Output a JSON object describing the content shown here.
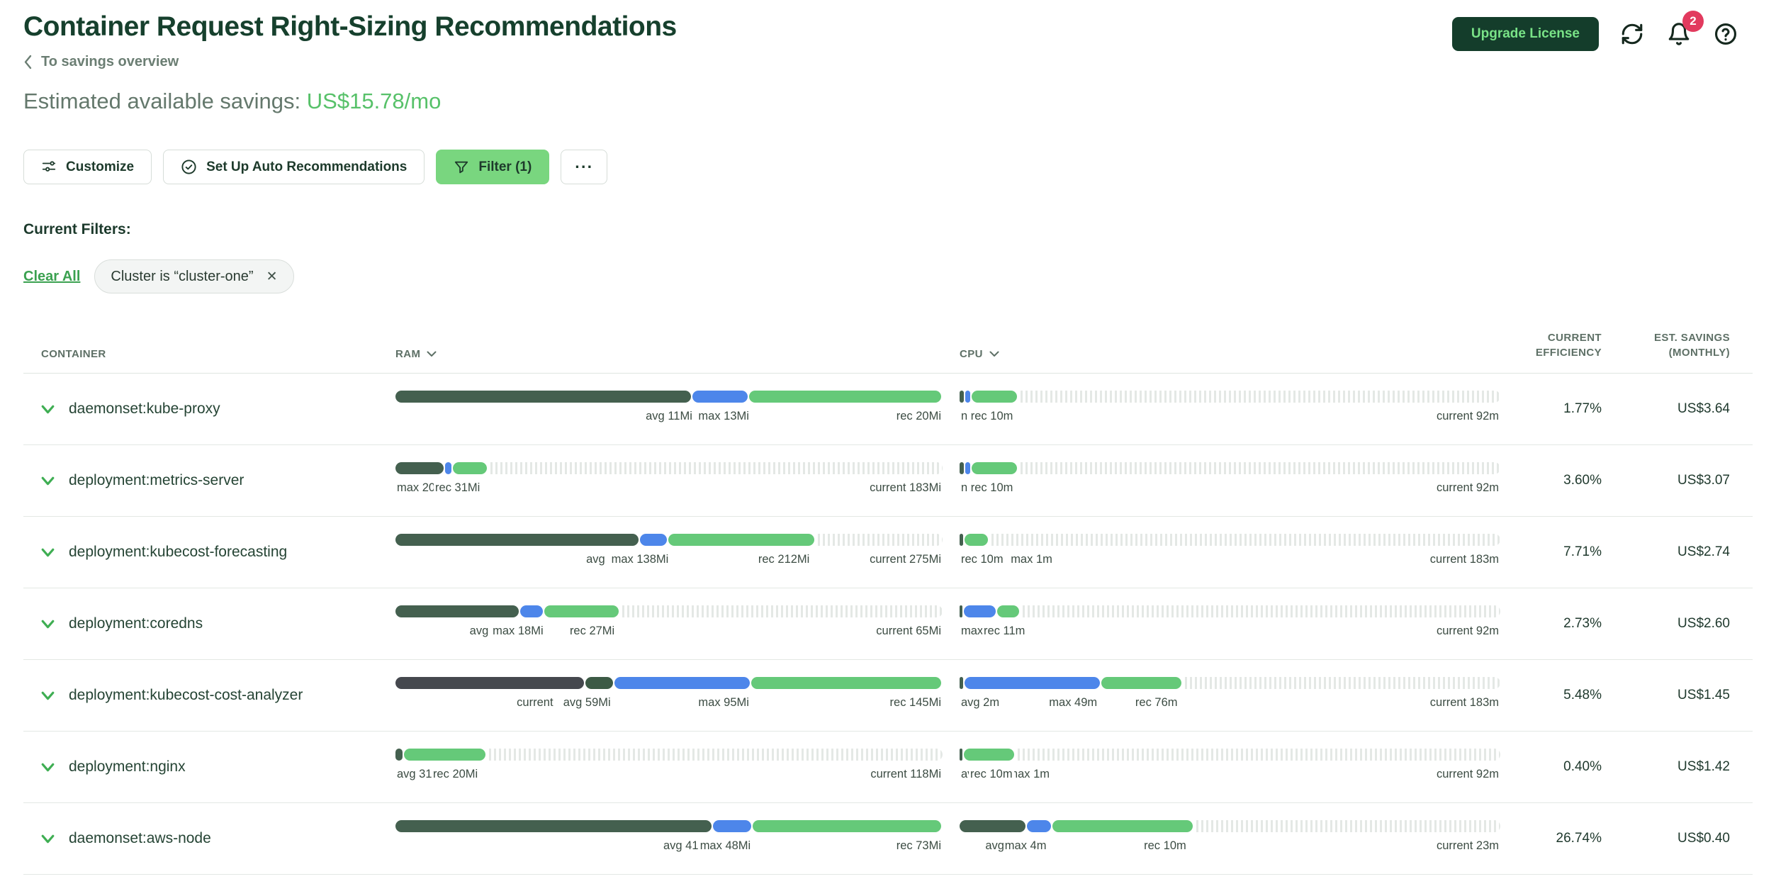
{
  "header": {
    "title": "Container Request Right-Sizing Recommendations",
    "breadcrumb": "To savings overview",
    "upgrade_label": "Upgrade License",
    "notification_count": "2"
  },
  "savings": {
    "label": "Estimated available savings:",
    "value": "US$15.78/mo"
  },
  "toolbar": {
    "customize": "Customize",
    "auto": "Set Up Auto Recommendations",
    "filter": "Filter (1)",
    "more": "···"
  },
  "filters": {
    "heading": "Current Filters:",
    "clear_all": "Clear All",
    "chip": "Cluster is “cluster-one”",
    "chip_close": "✕"
  },
  "columns": {
    "container": "CONTAINER",
    "ram": "RAM",
    "cpu": "CPU",
    "efficiency_1": "CURRENT",
    "efficiency_2": "EFFICIENCY",
    "savings_1": "EST. SAVINGS",
    "savings_2": "(MONTHLY)"
  },
  "colors": {
    "dark": "#44604f",
    "charcoal": "#45484e",
    "darkgreen": "#3c5a45",
    "blue": "#4d86ea",
    "green": "#65c979",
    "accent_green": "#57c169",
    "brand_dark_green": "#143d2b",
    "badge_red": "#e23a5e",
    "filter_btn_green": "#79d67f"
  },
  "rows": [
    {
      "name": "daemonset:kube-proxy",
      "ram": {
        "segments": [
          [
            "dark",
            0,
            54.3
          ],
          [
            "blue",
            54.3,
            64.6
          ],
          [
            "green",
            64.6,
            100
          ]
        ],
        "stripe": null,
        "markers": [
          {
            "t": "avg 11Mi",
            "x": 50,
            "a": "c"
          },
          {
            "t": "max 13Mi",
            "x": 60,
            "a": "c"
          },
          {
            "t": "rec 20Mi",
            "a": "r"
          }
        ]
      },
      "cpu": {
        "segments": [
          [
            "dark",
            0,
            1
          ],
          [
            "blue",
            1,
            2.2
          ],
          [
            "green",
            2.2,
            10.9
          ]
        ],
        "stripe": 10.9,
        "markers": [
          {
            "t": "n rec 10m",
            "x": 0,
            "a": "l"
          },
          {
            "t": "current 92m",
            "a": "r"
          }
        ]
      },
      "eff": "1.77%",
      "savings": "US$3.64"
    },
    {
      "name": "deployment:metrics-server",
      "ram": {
        "segments": [
          [
            "dark",
            0,
            9.1
          ],
          [
            "blue",
            9.1,
            10.5
          ],
          [
            "green",
            10.5,
            17
          ]
        ],
        "stripe": 17,
        "markers": [
          {
            "t": "max 20Mi",
            "x": 0,
            "a": "l"
          },
          {
            "t": "rec 31Mi",
            "x": 7,
            "a": "l"
          },
          {
            "t": "current 183Mi",
            "a": "r"
          }
        ]
      },
      "cpu": {
        "segments": [
          [
            "dark",
            0,
            1
          ],
          [
            "blue",
            1,
            2.2
          ],
          [
            "green",
            2.2,
            10.9
          ]
        ],
        "stripe": 10.9,
        "markers": [
          {
            "t": "n rec 10m",
            "x": 0,
            "a": "l"
          },
          {
            "t": "current 92m",
            "a": "r"
          }
        ]
      },
      "eff": "3.60%",
      "savings": "US$3.07"
    },
    {
      "name": "deployment:kubecost-forecasting",
      "ram": {
        "segments": [
          [
            "dark",
            0,
            44.7
          ],
          [
            "blue",
            44.7,
            49.9
          ],
          [
            "green",
            49.9,
            76.8
          ]
        ],
        "stripe": 76.8,
        "markers": [
          {
            "t": "avg",
            "x": 34.6,
            "a": "l"
          },
          {
            "t": "max 138Mi",
            "x": 39.2,
            "a": "l"
          },
          {
            "t": "rec 212Mi",
            "x": 71,
            "a": "c"
          },
          {
            "t": "current 275Mi",
            "a": "r"
          }
        ]
      },
      "cpu": {
        "segments": [
          [
            "dark",
            0,
            0.9
          ],
          [
            "green",
            0.9,
            5.5
          ]
        ],
        "stripe": 5.5,
        "markers": [
          {
            "t": "max 1m",
            "x": 9.2,
            "a": "l"
          },
          {
            "t": "rec 10m",
            "x": 0,
            "a": "l"
          },
          {
            "t": "current 183m",
            "a": "r"
          }
        ]
      },
      "eff": "7.71%",
      "savings": "US$2.74"
    },
    {
      "name": "deployment:coredns",
      "ram": {
        "segments": [
          [
            "dark",
            0,
            22.8
          ],
          [
            "blue",
            22.8,
            27.2
          ],
          [
            "green",
            27.2,
            41
          ]
        ],
        "stripe": 41,
        "markers": [
          {
            "t": "avg",
            "x": 13.3,
            "a": "l"
          },
          {
            "t": "max 18Mi",
            "x": 17.5,
            "a": "l"
          },
          {
            "t": "rec 27Mi",
            "x": 31.6,
            "a": "l"
          },
          {
            "t": "current 65Mi",
            "a": "r"
          }
        ]
      },
      "cpu": {
        "segments": [
          [
            "dark",
            0,
            0.8
          ],
          [
            "blue",
            0.8,
            7
          ],
          [
            "green",
            7,
            11.3
          ]
        ],
        "stripe": 11.3,
        "markers": [
          {
            "t": "max 1m",
            "x": 0,
            "a": "l"
          },
          {
            "t": "rec 11m",
            "x": 4.2,
            "a": "l"
          },
          {
            "t": "current 92m",
            "a": "r"
          }
        ]
      },
      "eff": "2.73%",
      "savings": "US$2.60"
    },
    {
      "name": "deployment:kubecost-cost-analyzer",
      "ram": {
        "segments": [
          [
            "charcoal",
            0,
            34.7
          ],
          [
            "darkgreen",
            34.7,
            40
          ],
          [
            "blue",
            40,
            65
          ],
          [
            "green",
            65,
            100
          ]
        ],
        "stripe": null,
        "markers": [
          {
            "t": "current",
            "x": 25.5,
            "a": "c"
          },
          {
            "t": "avg 59Mi",
            "x": 35,
            "a": "c"
          },
          {
            "t": "max 95Mi",
            "x": 60,
            "a": "c"
          },
          {
            "t": "rec 145Mi",
            "a": "r"
          }
        ]
      },
      "cpu": {
        "segments": [
          [
            "dark",
            0,
            0.9
          ],
          [
            "blue",
            0.9,
            26.2
          ],
          [
            "green",
            26.2,
            41.3
          ]
        ],
        "stripe": 41.3,
        "markers": [
          {
            "t": "avg 2m",
            "x": 0,
            "a": "l"
          },
          {
            "t": "max 49m",
            "x": 21,
            "a": "c"
          },
          {
            "t": "rec 76m",
            "x": 36.4,
            "a": "c"
          },
          {
            "t": "current 183m",
            "a": "r"
          }
        ]
      },
      "eff": "5.48%",
      "savings": "US$1.45"
    },
    {
      "name": "deployment:nginx",
      "ram": {
        "segments": [
          [
            "dark",
            0,
            1.6
          ],
          [
            "green",
            1.6,
            16.7
          ]
        ],
        "stripe": 16.7,
        "markers": [
          {
            "t": "avg 31Mi",
            "x": 0,
            "a": "l"
          },
          {
            "t": "rec 20Mi",
            "x": 6.6,
            "a": "l"
          },
          {
            "t": "current 118Mi",
            "a": "r"
          }
        ]
      },
      "cpu": {
        "segments": [
          [
            "dark",
            0,
            0.8
          ],
          [
            "green",
            0.8,
            10.4
          ]
        ],
        "stripe": 10.4,
        "markers": [
          {
            "t": "avg 1m",
            "x": 0,
            "a": "l"
          },
          {
            "t": "max 1m",
            "x": 8.7,
            "a": "l"
          },
          {
            "t": "rec 10m",
            "x": 1.7,
            "a": "l"
          },
          {
            "t": "current 92m",
            "a": "r"
          }
        ]
      },
      "eff": "0.40%",
      "savings": "US$1.42"
    },
    {
      "name": "daemonset:aws-node",
      "ram": {
        "segments": [
          [
            "dark",
            0,
            58
          ],
          [
            "blue",
            58,
            65.3
          ],
          [
            "green",
            65.3,
            100
          ]
        ],
        "stripe": null,
        "markers": [
          {
            "t": "avg 41Mi",
            "x": 48.7,
            "a": "l"
          },
          {
            "t": "max 48Mi",
            "x": 55.4,
            "a": "l"
          },
          {
            "t": "rec 73Mi",
            "a": "r"
          }
        ]
      },
      "cpu": {
        "segments": [
          [
            "dark",
            0,
            12.4
          ],
          [
            "blue",
            12.4,
            17.2
          ],
          [
            "green",
            17.2,
            43.4
          ]
        ],
        "stripe": 43.4,
        "markers": [
          {
            "t": "avg",
            "x": 4.5,
            "a": "l"
          },
          {
            "t": "max 4m",
            "x": 8.1,
            "a": "l"
          },
          {
            "t": "rec 10m",
            "x": 38,
            "a": "c"
          },
          {
            "t": "current 23m",
            "a": "r"
          }
        ]
      },
      "eff": "26.74%",
      "savings": "US$0.40"
    }
  ]
}
